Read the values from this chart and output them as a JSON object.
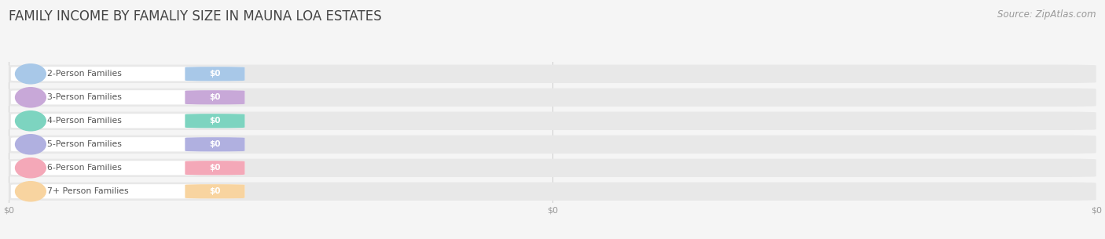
{
  "title": "FAMILY INCOME BY FAMALIY SIZE IN MAUNA LOA ESTATES",
  "source_text": "Source: ZipAtlas.com",
  "categories": [
    "2-Person Families",
    "3-Person Families",
    "4-Person Families",
    "5-Person Families",
    "6-Person Families",
    "7+ Person Families"
  ],
  "values": [
    0,
    0,
    0,
    0,
    0,
    0
  ],
  "bar_colors": [
    "#a8c8e8",
    "#c8a8d8",
    "#7dd4c0",
    "#b0b0e0",
    "#f4a8b8",
    "#f8d4a0"
  ],
  "background_color": "#f5f5f5",
  "bar_background_color": "#e8e8e8",
  "title_fontsize": 12,
  "source_fontsize": 8.5,
  "xtick_labels": [
    "$0",
    "$0",
    "$0"
  ],
  "xtick_positions": [
    0.0,
    0.5,
    1.0
  ],
  "tick_label_color": "#999999",
  "label_text_color": "#555555",
  "value_text_color": "#ffffff"
}
